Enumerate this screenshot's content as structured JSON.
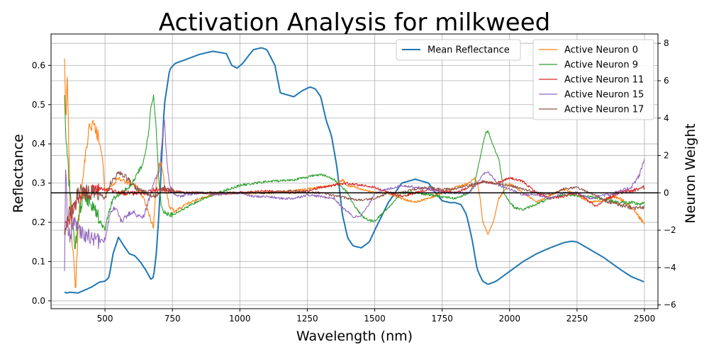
{
  "chart_data": {
    "type": "line",
    "title": "Activation Analysis for milkweed",
    "xlabel": "Wavelength (nm)",
    "ylabel_left": "Reflectance",
    "ylabel_right": "Neuron Weight",
    "xlim": [
      300,
      2550
    ],
    "ylim_left": [
      -0.02,
      0.68
    ],
    "ylim_right": [
      -6.2,
      8.5
    ],
    "grid": true,
    "x_ticks": [
      500,
      750,
      1000,
      1250,
      1500,
      1750,
      2000,
      2250,
      2500
    ],
    "x_tick_labels": [
      "500",
      "750",
      "1000",
      "1250",
      "1500",
      "1750",
      "2000",
      "2250",
      "2500"
    ],
    "y_left_ticks": [
      0.0,
      0.1,
      0.2,
      0.3,
      0.4,
      0.5,
      0.6
    ],
    "y_left_tick_labels": [
      "0.0",
      "0.1",
      "0.2",
      "0.3",
      "0.4",
      "0.5",
      "0.6"
    ],
    "y_right_ticks": [
      -6,
      -4,
      -2,
      0,
      2,
      4,
      6,
      8
    ],
    "y_right_tick_labels": [
      "−6",
      "−4",
      "−2",
      "0",
      "2",
      "4",
      "6",
      "8"
    ],
    "zero_line_right": 0,
    "legend_left": {
      "placement": "top-center",
      "entries": [
        "Mean Reflectance"
      ]
    },
    "legend_right": {
      "placement": "top-right",
      "entries": [
        "Active Neuron 0",
        "Active Neuron 9",
        "Active Neuron 11",
        "Active Neuron 15",
        "Active Neuron 17"
      ]
    },
    "series": [
      {
        "name": "Mean Reflectance",
        "axis": "left",
        "color": "#1f77b4",
        "x": [
          350,
          360,
          370,
          400,
          450,
          480,
          500,
          515,
          530,
          550,
          570,
          590,
          610,
          630,
          650,
          670,
          680,
          690,
          700,
          710,
          720,
          740,
          760,
          800,
          850,
          900,
          950,
          970,
          990,
          1010,
          1050,
          1080,
          1100,
          1130,
          1150,
          1200,
          1230,
          1260,
          1280,
          1300,
          1320,
          1340,
          1360,
          1380,
          1400,
          1420,
          1450,
          1480,
          1500,
          1550,
          1600,
          1650,
          1700,
          1720,
          1750,
          1780,
          1800,
          1820,
          1840,
          1860,
          1880,
          1900,
          1920,
          1950,
          2000,
          2050,
          2100,
          2150,
          2200,
          2230,
          2250,
          2300,
          2350,
          2400,
          2450,
          2500
        ],
        "y": [
          0.022,
          0.02,
          0.022,
          0.02,
          0.035,
          0.048,
          0.05,
          0.06,
          0.12,
          0.162,
          0.14,
          0.12,
          0.115,
          0.1,
          0.08,
          0.055,
          0.06,
          0.12,
          0.22,
          0.36,
          0.5,
          0.59,
          0.605,
          0.615,
          0.628,
          0.636,
          0.63,
          0.6,
          0.593,
          0.605,
          0.64,
          0.645,
          0.64,
          0.6,
          0.53,
          0.52,
          0.535,
          0.545,
          0.54,
          0.52,
          0.46,
          0.42,
          0.34,
          0.22,
          0.16,
          0.14,
          0.135,
          0.15,
          0.18,
          0.25,
          0.3,
          0.31,
          0.3,
          0.28,
          0.255,
          0.25,
          0.25,
          0.245,
          0.22,
          0.16,
          0.08,
          0.05,
          0.042,
          0.05,
          0.075,
          0.1,
          0.12,
          0.135,
          0.148,
          0.152,
          0.15,
          0.13,
          0.11,
          0.085,
          0.062,
          0.048
        ]
      },
      {
        "name": "Active Neuron 0",
        "axis": "right",
        "color": "#ff7f0e",
        "x": [
          350,
          355,
          360,
          370,
          380,
          390,
          400,
          420,
          440,
          450,
          470,
          490,
          500,
          520,
          550,
          580,
          620,
          650,
          670,
          680,
          690,
          700,
          710,
          720,
          740,
          760,
          800,
          850,
          900,
          1000,
          1100,
          1200,
          1300,
          1350,
          1380,
          1400,
          1450,
          1500,
          1550,
          1600,
          1650,
          1700,
          1750,
          1800,
          1850,
          1870,
          1880,
          1890,
          1900,
          1920,
          1940,
          1960,
          2000,
          2050,
          2100,
          2200,
          2300,
          2350,
          2400,
          2450,
          2480,
          2500
        ],
        "y": [
          7.5,
          3.0,
          6.5,
          0.0,
          -3.0,
          -5.3,
          -2.0,
          1.0,
          3.5,
          3.7,
          3.2,
          2.0,
          0.0,
          0.3,
          0.8,
          0.6,
          0.3,
          -0.5,
          -1.5,
          -1.8,
          0.5,
          1.5,
          1.6,
          0.5,
          -0.8,
          -1.0,
          -0.6,
          -0.3,
          -0.1,
          0.0,
          0.0,
          0.1,
          0.3,
          0.4,
          0.7,
          0.4,
          0.2,
          0.0,
          0.0,
          -0.3,
          -0.5,
          -0.3,
          0.0,
          0.3,
          0.5,
          0.8,
          0.5,
          -0.2,
          -1.5,
          -2.2,
          -1.5,
          -0.3,
          0.5,
          0.0,
          -0.5,
          0.2,
          -0.5,
          -0.4,
          -0.2,
          -0.8,
          -1.3,
          -1.7
        ]
      },
      {
        "name": "Active Neuron 9",
        "axis": "right",
        "color": "#2ca02c",
        "x": [
          350,
          355,
          360,
          370,
          380,
          390,
          400,
          420,
          450,
          480,
          500,
          515,
          530,
          560,
          600,
          640,
          660,
          670,
          680,
          690,
          700,
          710,
          720,
          730,
          750,
          800,
          850,
          900,
          1000,
          1100,
          1200,
          1300,
          1350,
          1380,
          1400,
          1420,
          1450,
          1480,
          1500,
          1550,
          1600,
          1650,
          1700,
          1750,
          1800,
          1850,
          1870,
          1890,
          1910,
          1920,
          1940,
          1960,
          1980,
          2000,
          2020,
          2050,
          2100,
          2150,
          2200,
          2300,
          2400,
          2500
        ],
        "y": [
          5.5,
          3.0,
          2.0,
          0.0,
          -2.0,
          -3.0,
          -1.5,
          0.0,
          -0.5,
          -1.5,
          -2.0,
          -1.0,
          -0.3,
          0.0,
          0.5,
          1.5,
          3.0,
          4.5,
          5.2,
          3.5,
          0.5,
          -0.8,
          -1.0,
          -1.1,
          -1.2,
          -0.8,
          -0.4,
          -0.1,
          0.4,
          0.6,
          0.7,
          1.0,
          0.7,
          0.3,
          0.0,
          -0.6,
          -1.2,
          -1.5,
          -1.5,
          -0.8,
          0.0,
          0.0,
          -0.1,
          -0.2,
          -0.3,
          0.0,
          0.5,
          1.8,
          3.2,
          3.3,
          2.5,
          1.8,
          0.0,
          -0.5,
          -0.8,
          -0.9,
          -0.6,
          -0.3,
          -0.1,
          -0.2,
          -0.5,
          -0.6
        ]
      },
      {
        "name": "Active Neuron 11",
        "axis": "right",
        "color": "#d62728",
        "x": [
          350,
          360,
          380,
          400,
          420,
          450,
          500,
          550,
          600,
          650,
          700,
          750,
          800,
          900,
          1000,
          1100,
          1200,
          1250,
          1300,
          1350,
          1380,
          1400,
          1450,
          1500,
          1550,
          1600,
          1650,
          1700,
          1750,
          1800,
          1850,
          1900,
          1950,
          2000,
          2050,
          2100,
          2150,
          2200,
          2250,
          2300,
          2320,
          2350,
          2400,
          2450,
          2500
        ],
        "y": [
          -2.0,
          -1.5,
          -1.0,
          -0.5,
          0.0,
          0.1,
          0.2,
          0.0,
          0.0,
          0.0,
          0.2,
          0.1,
          0.0,
          0.0,
          0.0,
          0.1,
          0.0,
          0.1,
          0.3,
          0.4,
          0.5,
          0.5,
          0.4,
          0.3,
          0.0,
          -0.2,
          0.0,
          0.2,
          0.1,
          0.0,
          0.3,
          0.6,
          0.5,
          0.8,
          0.6,
          0.0,
          -0.3,
          -0.2,
          0.0,
          -0.5,
          -0.7,
          -0.4,
          0.0,
          0.1,
          0.3
        ]
      },
      {
        "name": "Active Neuron 15",
        "axis": "right",
        "color": "#9467bd",
        "x": [
          350,
          355,
          360,
          370,
          380,
          400,
          420,
          450,
          480,
          500,
          520,
          540,
          560,
          600,
          640,
          660,
          680,
          700,
          710,
          720,
          730,
          740,
          750,
          780,
          800,
          850,
          900,
          1000,
          1050,
          1100,
          1150,
          1200,
          1250,
          1300,
          1350,
          1380,
          1400,
          1420,
          1450,
          1480,
          1500,
          1550,
          1600,
          1650,
          1700,
          1750,
          1800,
          1850,
          1880,
          1900,
          1920,
          1940,
          1960,
          2000,
          2050,
          2100,
          2150,
          2200,
          2250,
          2300,
          2350,
          2400,
          2450,
          2480,
          2500
        ],
        "y": [
          -4.0,
          2.0,
          -1.5,
          -2.5,
          -1.5,
          -2.0,
          -2.2,
          -2.4,
          -2.6,
          -2.5,
          -1.0,
          -0.8,
          -1.5,
          -1.0,
          -1.4,
          -0.5,
          0.5,
          1.0,
          2.5,
          4.0,
          1.5,
          0.5,
          0.0,
          -0.2,
          -0.1,
          0.0,
          -0.1,
          0.0,
          -0.2,
          -0.2,
          -0.3,
          -0.3,
          -0.1,
          -0.2,
          -0.3,
          -0.8,
          -1.0,
          -1.3,
          -1.2,
          -0.6,
          0.0,
          0.2,
          0.4,
          0.3,
          0.2,
          0.0,
          0.0,
          0.0,
          0.5,
          1.0,
          1.1,
          0.8,
          0.4,
          0.2,
          -0.1,
          -0.1,
          -0.3,
          0.0,
          0.0,
          -0.3,
          -0.1,
          0.0,
          0.3,
          0.9,
          1.8
        ]
      },
      {
        "name": "Active Neuron 17",
        "axis": "right",
        "color": "#8c564b",
        "x": [
          350,
          355,
          360,
          370,
          380,
          400,
          420,
          450,
          480,
          500,
          520,
          550,
          580,
          600,
          620,
          650,
          680,
          700,
          720,
          750,
          800,
          900,
          1000,
          1100,
          1200,
          1300,
          1400,
          1450,
          1500,
          1550,
          1600,
          1650,
          1700,
          1750,
          1800,
          1850,
          1900,
          1950,
          2000,
          2050,
          2100,
          2150,
          2200,
          2250,
          2300,
          2350,
          2400,
          2450,
          2500
        ],
        "y": [
          -2.0,
          -1.8,
          -1.5,
          -1.0,
          -0.8,
          0.0,
          0.1,
          0.0,
          -0.1,
          -0.3,
          0.5,
          1.1,
          0.8,
          0.5,
          0.2,
          0.0,
          -0.2,
          0.0,
          0.3,
          0.1,
          0.0,
          0.0,
          0.0,
          0.0,
          0.1,
          0.0,
          -0.3,
          -0.4,
          -0.3,
          0.0,
          0.0,
          0.2,
          0.3,
          0.2,
          0.2,
          0.4,
          0.6,
          0.5,
          0.4,
          0.2,
          0.0,
          -0.1,
          0.2,
          0.3,
          0.0,
          -0.4,
          -0.6,
          -0.8,
          -0.8
        ]
      }
    ]
  }
}
